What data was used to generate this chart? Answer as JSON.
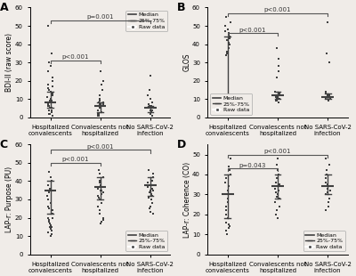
{
  "panels": [
    {
      "label": "A",
      "ylabel": "BDI-II (raw score)",
      "ylim": [
        0,
        60
      ],
      "yticks": [
        0,
        10,
        20,
        30,
        40,
        50,
        60
      ],
      "groups": [
        {
          "name": "Hospitalized\nconvalescents",
          "points": [
            50,
            35,
            30,
            28,
            25,
            22,
            20,
            18,
            17,
            16,
            15,
            14,
            13,
            12,
            11,
            10,
            10,
            9,
            9,
            8,
            8,
            7,
            7,
            6,
            6,
            5,
            5,
            4,
            4,
            3,
            3,
            2,
            2,
            1
          ],
          "median": 8,
          "q25": 5,
          "q75": 14
        },
        {
          "name": "Convalescents not\nhospitalized",
          "points": [
            25,
            20,
            18,
            15,
            12,
            10,
            9,
            8,
            8,
            7,
            7,
            6,
            6,
            5,
            5,
            4,
            4,
            3,
            3,
            2,
            2,
            1,
            1
          ],
          "median": 6,
          "q25": 3,
          "q75": 8
        },
        {
          "name": "No SARS-CoV-2\ninfection",
          "points": [
            23,
            15,
            12,
            10,
            8,
            7,
            6,
            6,
            5,
            5,
            4,
            4,
            3,
            3,
            2,
            2,
            1
          ],
          "median": 5,
          "q25": 3,
          "q75": 6
        }
      ],
      "sig_brackets": [
        {
          "g1": 0,
          "g2": 1,
          "y": 31,
          "label": "p<0.001"
        },
        {
          "g1": 0,
          "g2": 2,
          "y": 53,
          "label": "p=0.001"
        }
      ],
      "legend_loc": "upper right",
      "legend_inside": true
    },
    {
      "label": "B",
      "ylabel": "GLOS",
      "ylim": [
        0,
        60
      ],
      "yticks": [
        0,
        10,
        20,
        30,
        40,
        50,
        60
      ],
      "groups": [
        {
          "name": "Hospitalized\nconvalescents",
          "points": [
            55,
            52,
            50,
            48,
            47,
            46,
            45,
            44,
            43,
            42,
            41,
            40,
            38,
            36,
            35,
            34,
            12,
            11,
            11,
            10,
            10,
            9,
            9,
            8,
            8,
            7
          ],
          "median": 12,
          "q25": 9,
          "q75": 44
        },
        {
          "name": "Convalescents not\nhospitalized",
          "points": [
            38,
            32,
            28,
            25,
            22,
            14,
            13,
            12,
            12,
            11,
            11,
            10,
            10,
            9,
            9,
            8
          ],
          "median": 12,
          "q25": 10,
          "q75": 14
        },
        {
          "name": "No SARS-CoV-2\ninfection",
          "points": [
            52,
            35,
            30,
            14,
            13,
            12,
            12,
            11,
            11,
            10,
            10,
            9
          ],
          "median": 11,
          "q25": 10,
          "q75": 13
        }
      ],
      "sig_brackets": [
        {
          "g1": 0,
          "g2": 1,
          "y": 46,
          "label": "p<0.001"
        },
        {
          "g1": 0,
          "g2": 2,
          "y": 57,
          "label": "p<0.001"
        }
      ],
      "legend_loc": "lower left",
      "legend_inside": true
    },
    {
      "label": "C",
      "ylabel": "LAP-r: Purpose (PU)",
      "ylim": [
        0,
        60
      ],
      "yticks": [
        0,
        10,
        20,
        30,
        40,
        50,
        60
      ],
      "groups": [
        {
          "name": "Hospitalized\nconvalescents",
          "points": [
            45,
            42,
            40,
            38,
            36,
            35,
            34,
            32,
            30,
            28,
            26,
            25,
            24,
            22,
            20,
            20,
            19,
            18,
            17,
            16,
            15,
            15,
            14,
            13,
            12,
            11,
            10
          ],
          "median": 35,
          "q25": 22,
          "q75": 40
        },
        {
          "name": "Convalescents not\nhospitalized",
          "points": [
            46,
            44,
            42,
            40,
            39,
            38,
            37,
            36,
            35,
            35,
            34,
            33,
            32,
            31,
            30,
            28,
            26,
            24,
            22,
            20,
            19,
            18,
            17
          ],
          "median": 37,
          "q25": 30,
          "q75": 42
        },
        {
          "name": "No SARS-CoV-2\ninfection",
          "points": [
            46,
            44,
            42,
            40,
            39,
            38,
            37,
            36,
            35,
            35,
            34,
            33,
            32,
            31,
            30,
            28,
            26,
            25,
            23,
            22
          ],
          "median": 38,
          "q25": 32,
          "q75": 42
        }
      ],
      "sig_brackets": [
        {
          "g1": 0,
          "g2": 1,
          "y": 50,
          "label": "p<0.001"
        },
        {
          "g1": 0,
          "g2": 2,
          "y": 57,
          "label": "p<0.001"
        }
      ],
      "legend_loc": "lower right",
      "legend_inside": true
    },
    {
      "label": "D",
      "ylabel": "LAP-r: Coherence (CO)",
      "ylim": [
        0,
        55
      ],
      "yticks": [
        0,
        10,
        20,
        30,
        40,
        50
      ],
      "groups": [
        {
          "name": "Hospitalized\nconvalescents",
          "points": [
            48,
            44,
            42,
            40,
            38,
            36,
            34,
            32,
            30,
            28,
            26,
            24,
            22,
            20,
            18,
            16,
            15,
            14,
            13,
            12,
            10
          ],
          "median": 30,
          "q25": 18,
          "q75": 40
        },
        {
          "name": "Convalescents not\nhospitalized",
          "points": [
            48,
            45,
            42,
            40,
            38,
            36,
            35,
            34,
            33,
            32,
            31,
            30,
            29,
            28,
            26,
            24,
            22,
            20,
            18
          ],
          "median": 34,
          "q25": 28,
          "q75": 40
        },
        {
          "name": "No SARS-CoV-2\ninfection",
          "points": [
            48,
            45,
            42,
            40,
            38,
            36,
            35,
            34,
            33,
            32,
            31,
            30,
            28,
            26,
            24,
            22
          ],
          "median": 34,
          "q25": 30,
          "q75": 40
        }
      ],
      "sig_brackets": [
        {
          "g1": 0,
          "g2": 1,
          "y": 43,
          "label": "p=0.043"
        },
        {
          "g1": 0,
          "g2": 2,
          "y": 50,
          "label": "p<0.001"
        }
      ],
      "legend_loc": "lower right",
      "legend_inside": true
    }
  ],
  "dot_color": "#404040",
  "median_color": "#404040",
  "bar_color": "#404040",
  "bg_color": "#f0ece8",
  "panel_bg": "#f0ece8",
  "legend_items": [
    "Median",
    "25%-75%",
    "Raw data"
  ],
  "dot_size": 3.5,
  "marker": "s",
  "jitter_scale": 0.055,
  "median_halfwidth": 0.12,
  "iqr_halfwidth": 0.06,
  "bracket_color": "#555555",
  "bracket_lw": 0.8,
  "sig_fontsize": 5.0,
  "xlabel_fontsize": 5.0,
  "ylabel_fontsize": 5.5,
  "ytick_fontsize": 5.0,
  "legend_fontsize": 4.5,
  "panel_label_fontsize": 9
}
